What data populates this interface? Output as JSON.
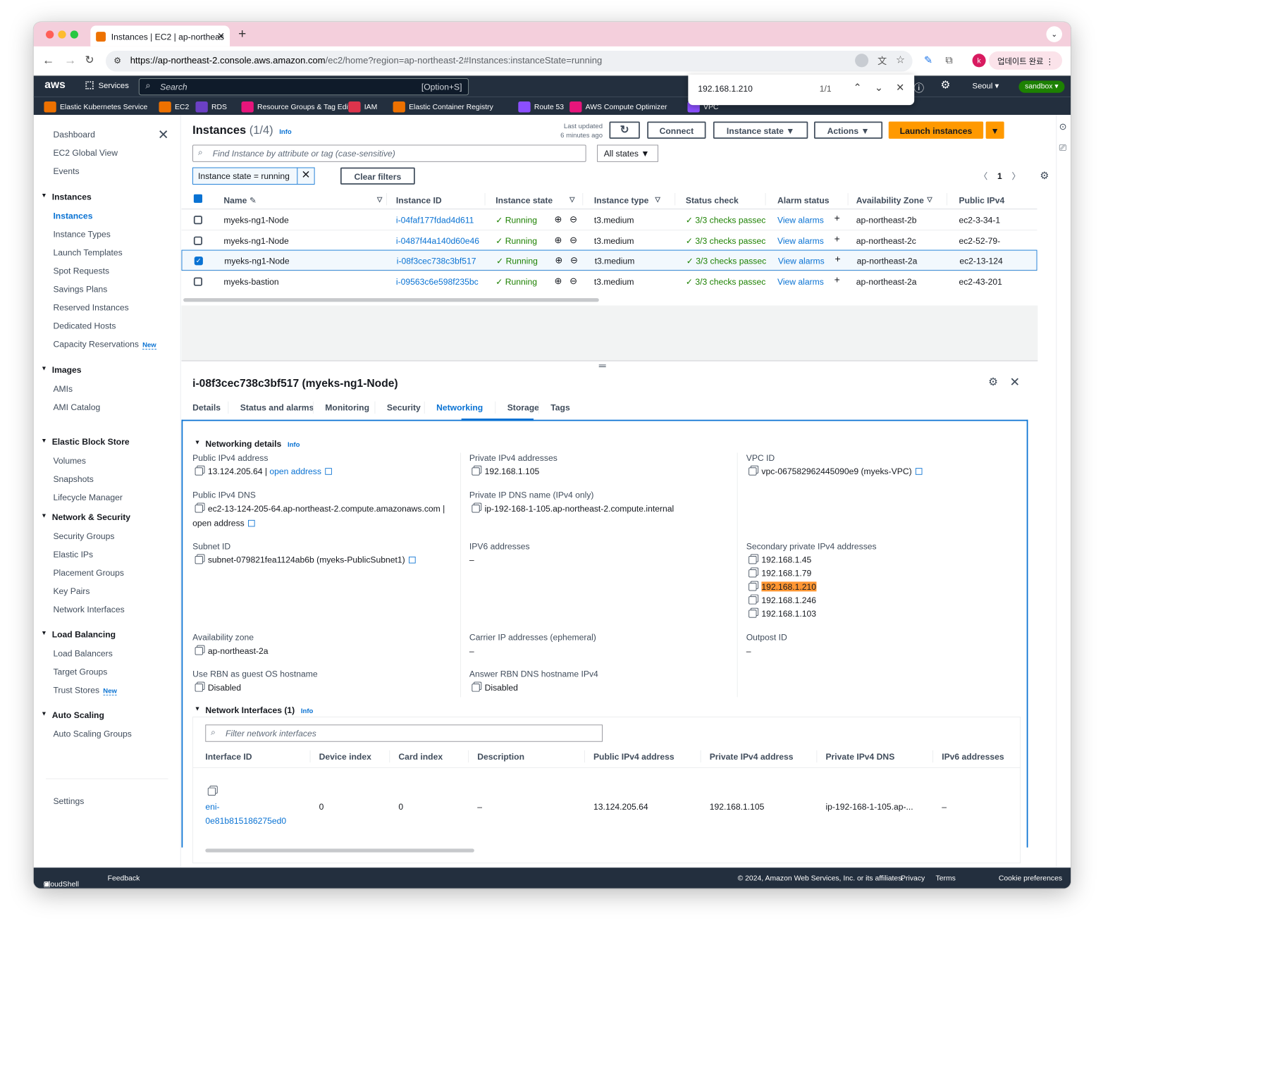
{
  "browser": {
    "tab_title": "Instances | EC2 | ap-northeas",
    "url_host": "https://ap-northeast-2.console.aws.amazon.com",
    "url_path": "/ec2/home?region=ap-northeast-2#Instances:instanceState=running",
    "update_label": "업데이트 완료",
    "avatar_letter": "k"
  },
  "aws_nav": {
    "logo": "aws",
    "services": "Services",
    "search_placeholder": "Search",
    "search_shortcut": "[Option+S]",
    "region": "Seoul",
    "account_badge": "sandbox"
  },
  "find_bar": {
    "query": "192.168.1.210",
    "count": "1/1"
  },
  "favorites": [
    {
      "label": "Elastic Kubernetes Service",
      "color": "#ed7100"
    },
    {
      "label": "EC2",
      "color": "#ed7100"
    },
    {
      "label": "RDS",
      "color": "#6b40c4"
    },
    {
      "label": "Resource Groups & Tag Editor",
      "color": "#e7157b"
    },
    {
      "label": "IAM",
      "color": "#dd344c"
    },
    {
      "label": "Elastic Container Registry",
      "color": "#ed7100"
    },
    {
      "label": "Route 53",
      "color": "#8c4fff"
    },
    {
      "label": "AWS Compute Optimizer",
      "color": "#e7157b"
    },
    {
      "label": "VPC",
      "color": "#8c4fff"
    }
  ],
  "sidebar": {
    "top": [
      "Dashboard",
      "EC2 Global View",
      "Events"
    ],
    "sections": [
      {
        "title": "Instances",
        "items": [
          "Instances",
          "Instance Types",
          "Launch Templates",
          "Spot Requests",
          "Savings Plans",
          "Reserved Instances",
          "Dedicated Hosts",
          "Capacity Reservations"
        ]
      },
      {
        "title": "Images",
        "items": [
          "AMIs",
          "AMI Catalog"
        ]
      },
      {
        "title": "Elastic Block Store",
        "items": [
          "Volumes",
          "Snapshots",
          "Lifecycle Manager"
        ]
      },
      {
        "title": "Network & Security",
        "items": [
          "Security Groups",
          "Elastic IPs",
          "Placement Groups",
          "Key Pairs",
          "Network Interfaces"
        ]
      },
      {
        "title": "Load Balancing",
        "items": [
          "Load Balancers",
          "Target Groups",
          "Trust Stores"
        ]
      },
      {
        "title": "Auto Scaling",
        "items": [
          "Auto Scaling Groups"
        ]
      }
    ],
    "new_badge": "New",
    "settings": "Settings"
  },
  "instances": {
    "title": "Instances",
    "count": "(1/4)",
    "info": "Info",
    "last_updated_1": "Last updated",
    "last_updated_2": "6 minutes ago",
    "connect": "Connect",
    "instance_state": "Instance state",
    "actions": "Actions",
    "launch": "Launch instances",
    "search_placeholder": "Find Instance by attribute or tag (case-sensitive)",
    "all_states": "All states",
    "filter_chip": "Instance state = running",
    "clear_filters": "Clear filters",
    "page": "1",
    "columns": [
      "Name",
      "Instance ID",
      "Instance state",
      "Instance type",
      "Status check",
      "Alarm status",
      "Availability Zone",
      "Public IPv4"
    ],
    "rows": [
      {
        "name": "myeks-ng1-Node",
        "id": "i-04faf177fdad4d611",
        "state": "Running",
        "type": "t3.medium",
        "status": "3/3 checks passec",
        "alarm": "View alarms",
        "az": "ap-northeast-2b",
        "ip": "ec2-3-34-1",
        "selected": false
      },
      {
        "name": "myeks-ng1-Node",
        "id": "i-0487f44a140d60e46",
        "state": "Running",
        "type": "t3.medium",
        "status": "3/3 checks passec",
        "alarm": "View alarms",
        "az": "ap-northeast-2c",
        "ip": "ec2-52-79-",
        "selected": false
      },
      {
        "name": "myeks-ng1-Node",
        "id": "i-08f3cec738c3bf517",
        "state": "Running",
        "type": "t3.medium",
        "status": "3/3 checks passec",
        "alarm": "View alarms",
        "az": "ap-northeast-2a",
        "ip": "ec2-13-124",
        "selected": true
      },
      {
        "name": "myeks-bastion",
        "id": "i-09563c6e598f235bc",
        "state": "Running",
        "type": "t3.medium",
        "status": "3/3 checks passec",
        "alarm": "View alarms",
        "az": "ap-northeast-2a",
        "ip": "ec2-43-201",
        "selected": false
      }
    ]
  },
  "detail": {
    "title": "i-08f3cec738c3bf517 (myeks-ng1-Node)",
    "tabs": [
      "Details",
      "Status and alarms",
      "Monitoring",
      "Security",
      "Networking",
      "Storage",
      "Tags"
    ],
    "active_tab": "Networking",
    "net_section": "Networking details",
    "info": "Info",
    "pub_ipv4_label": "Public IPv4 address",
    "pub_ipv4": "13.124.205.64",
    "open_address": "open address",
    "priv_ipv4_label": "Private IPv4 addresses",
    "priv_ipv4": "192.168.1.105",
    "vpc_label": "VPC ID",
    "vpc": "vpc-067582962445090e9 (myeks-VPC)",
    "pub_dns_label": "Public IPv4 DNS",
    "pub_dns": "ec2-13-124-205-64.ap-northeast-2.compute.amazonaws.com",
    "priv_dns_label": "Private IP DNS name (IPv4 only)",
    "priv_dns": "ip-192-168-1-105.ap-northeast-2.compute.internal",
    "subnet_label": "Subnet ID",
    "subnet": "subnet-079821fea1124ab6b (myeks-PublicSubnet1)",
    "ipv6_label": "IPV6 addresses",
    "dash": "–",
    "secondary_label": "Secondary private IPv4 addresses",
    "secondary": [
      "192.168.1.45",
      "192.168.1.79",
      "192.168.1.210",
      "192.168.1.246",
      "192.168.1.103"
    ],
    "az_label": "Availability zone",
    "az": "ap-northeast-2a",
    "carrier_label": "Carrier IP addresses (ephemeral)",
    "outpost_label": "Outpost ID",
    "rbn_label": "Use RBN as guest OS hostname",
    "rbn": "Disabled",
    "answer_label": "Answer RBN DNS hostname IPv4",
    "answer": "Disabled",
    "ni_section": "Network Interfaces (1)",
    "ni_filter": "Filter network interfaces",
    "ni_columns": [
      "Interface ID",
      "Device index",
      "Card index",
      "Description",
      "Public IPv4 address",
      "Private IPv4 address",
      "Private IPv4 DNS",
      "IPv6 addresses"
    ],
    "ni_row": {
      "id_1": "eni-",
      "id_2": "0e81b815186275ed0",
      "device": "0",
      "card": "0",
      "desc": "–",
      "pub": "13.124.205.64",
      "priv": "192.168.1.105",
      "dns": "ip-192-168-1-105.ap-...",
      "ipv6": "–"
    }
  },
  "footer": {
    "cloudshell": "CloudShell",
    "feedback": "Feedback",
    "copyright": "© 2024, Amazon Web Services, Inc. or its affiliates.",
    "privacy": "Privacy",
    "terms": "Terms",
    "cookies": "Cookie preferences"
  }
}
